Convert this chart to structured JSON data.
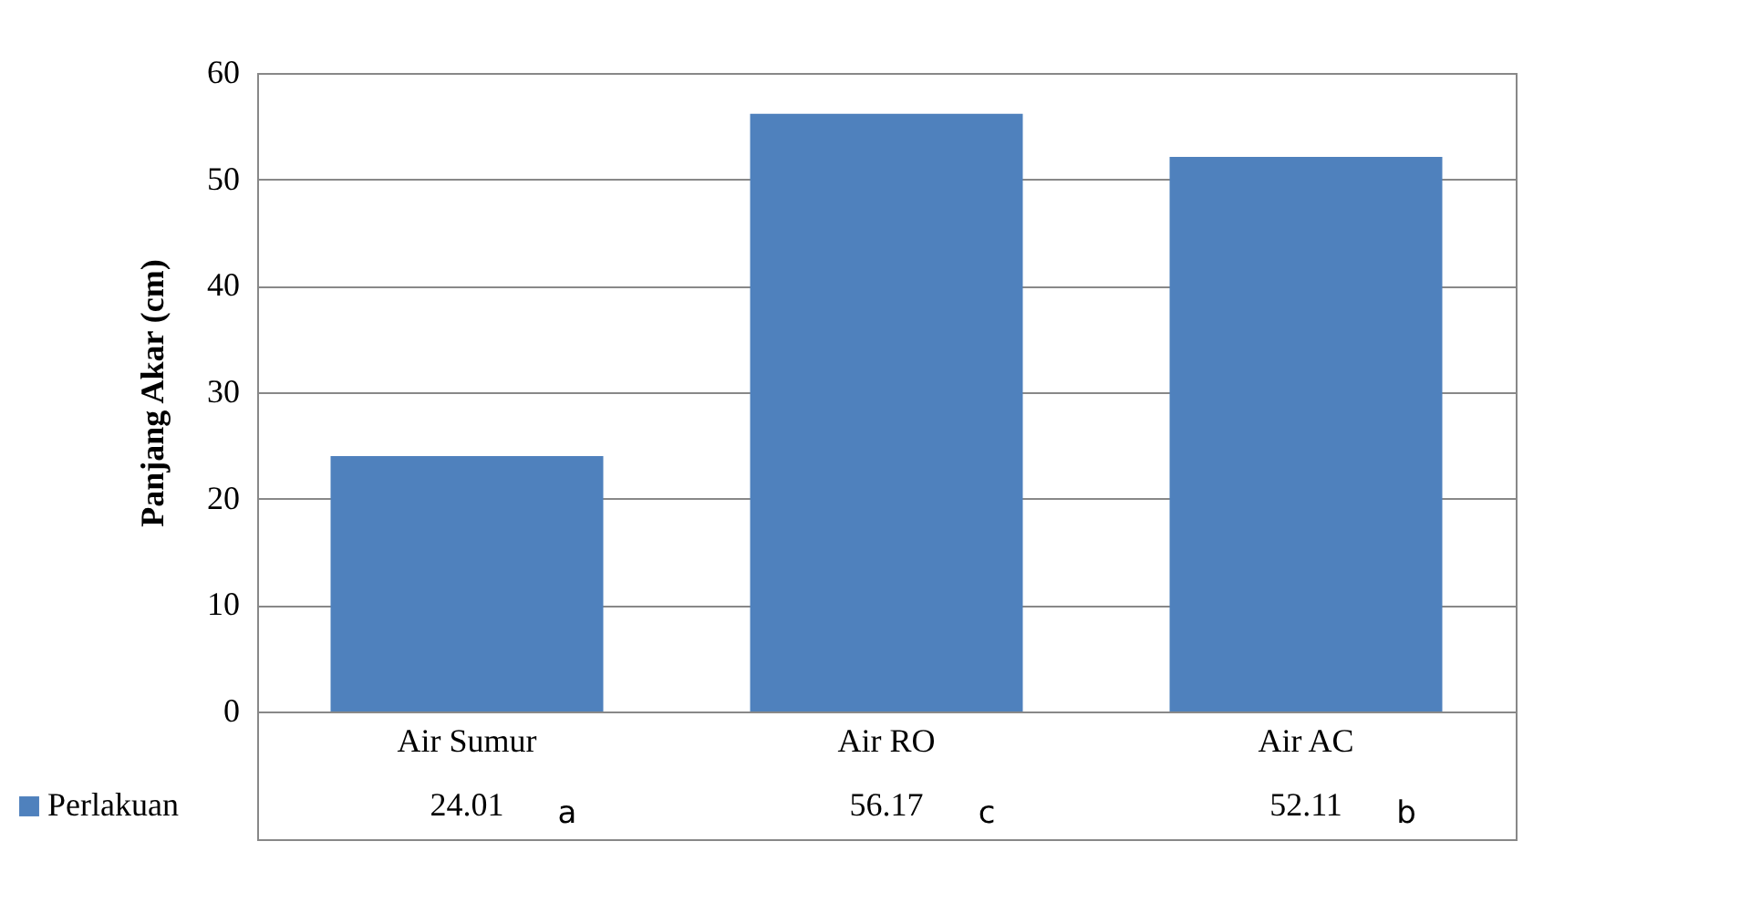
{
  "chart_data": {
    "type": "bar",
    "ylabel": "Panjang Akar (cm)",
    "categories": [
      "Air Sumur",
      "Air RO",
      "Air AC"
    ],
    "series": [
      {
        "name": "Perlakuan",
        "color": "#4f81bd",
        "values": [
          24.01,
          56.17,
          52.11
        ]
      }
    ],
    "ylim": [
      0,
      60
    ],
    "yticks": [
      0,
      10,
      20,
      30,
      40,
      50,
      60
    ],
    "grid": "y",
    "data_labels": true,
    "legend": "bottom left",
    "annotations": [
      "a",
      "c",
      "b"
    ]
  }
}
